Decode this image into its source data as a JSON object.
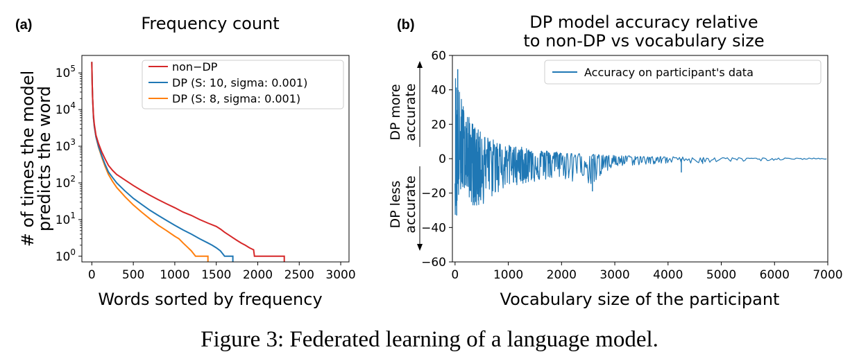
{
  "caption": "Figure 3: Federated learning of a language model.",
  "chart_data": [
    {
      "type": "line",
      "panel_label": "(a)",
      "title": "Frequency count",
      "xlabel": "Words sorted by frequency",
      "ylabel": "# of times the model\npredicts the word",
      "yscale": "log",
      "xlim": [
        -120,
        3100
      ],
      "ylim": [
        0.7,
        300000
      ],
      "xticks": [
        0,
        500,
        1000,
        1500,
        2000,
        2500,
        3000
      ],
      "xtick_labels": [
        "0",
        "500",
        "1000",
        "1500",
        "2000",
        "2500",
        "3000"
      ],
      "yticks": [
        1,
        10,
        100,
        1000,
        10000,
        100000
      ],
      "ytick_labels": [
        "10^0",
        "10^1",
        "10^2",
        "10^3",
        "10^4",
        "10^5"
      ],
      "legend_position": "top-right",
      "series": [
        {
          "name": "non−DP",
          "color": "#d62728",
          "x": [
            0,
            5,
            10,
            20,
            30,
            50,
            80,
            120,
            160,
            200,
            250,
            300,
            400,
            500,
            600,
            700,
            800,
            900,
            1000,
            1100,
            1200,
            1300,
            1400,
            1500,
            1550,
            1600,
            1650,
            1700,
            1750,
            1800,
            1850,
            1900,
            1950,
            1960,
            2320,
            2320
          ],
          "y": [
            200000,
            50000,
            20000,
            7000,
            4000,
            2000,
            1200,
            700,
            450,
            300,
            220,
            170,
            120,
            85,
            62,
            46,
            35,
            27,
            21,
            16,
            13,
            10,
            8,
            6.5,
            5.5,
            4.5,
            3.8,
            3.2,
            2.7,
            2.3,
            2,
            1.7,
            1.5,
            1,
            1,
            0.7
          ]
        },
        {
          "name": "DP (S: 10, sigma: 0.001)",
          "color": "#1f77b4",
          "x": [
            0,
            5,
            10,
            20,
            30,
            50,
            80,
            120,
            160,
            200,
            250,
            300,
            400,
            500,
            600,
            700,
            800,
            900,
            1000,
            1100,
            1200,
            1300,
            1400,
            1450,
            1500,
            1550,
            1600,
            1700,
            1700
          ],
          "y": [
            200000,
            50000,
            20000,
            6000,
            3500,
            1800,
            1000,
            550,
            320,
            200,
            140,
            100,
            60,
            38,
            26,
            18,
            13,
            9.5,
            7,
            5.2,
            4,
            3,
            2.3,
            2,
            1.7,
            1.4,
            1,
            1,
            0.7
          ]
        },
        {
          "name": "DP (S: 8, sigma: 0.001)",
          "color": "#ff7f0e",
          "x": [
            0,
            5,
            10,
            20,
            30,
            50,
            80,
            120,
            160,
            200,
            250,
            300,
            400,
            500,
            600,
            700,
            800,
            900,
            1000,
            1050,
            1100,
            1150,
            1200,
            1250,
            1400,
            1400
          ],
          "y": [
            200000,
            50000,
            20000,
            6000,
            3500,
            1800,
            950,
            500,
            280,
            170,
            110,
            75,
            42,
            25,
            16,
            10.5,
            7,
            5,
            3.5,
            3,
            2.3,
            1.8,
            1.4,
            1,
            1,
            0.7
          ]
        }
      ]
    },
    {
      "type": "line",
      "panel_label": "(b)",
      "title": "DP model accuracy relative\nto  non-DP vs vocabulary size",
      "xlabel": "Vocabulary size of the participant",
      "ylabel_upper": "DP more\naccurate",
      "ylabel_lower": "DP less\naccurate",
      "xlim": [
        -50,
        7000
      ],
      "ylim": [
        -60,
        60
      ],
      "xticks": [
        0,
        1000,
        2000,
        3000,
        4000,
        5000,
        6000,
        7000
      ],
      "xtick_labels": [
        "0",
        "1000",
        "2000",
        "3000",
        "4000",
        "5000",
        "6000",
        "7000"
      ],
      "yticks": [
        -60,
        -40,
        -20,
        0,
        20,
        40,
        60
      ],
      "ytick_labels": [
        "−60",
        "−40",
        "−20",
        "0",
        "20",
        "40",
        "60"
      ],
      "legend_position": "top-right",
      "series": [
        {
          "name": "Accuracy on participant's data",
          "color": "#1f77b4",
          "envelope_x": [
            0,
            50,
            100,
            150,
            200,
            300,
            400,
            500,
            600,
            800,
            1000,
            1200,
            1400,
            1600,
            1800,
            2000,
            2200,
            2400,
            2600,
            2800,
            3000,
            3300,
            3600,
            4000,
            4500,
            5000,
            5500,
            6000,
            6500,
            7000
          ],
          "envelope_upper": [
            52,
            45,
            38,
            32,
            28,
            22,
            18,
            15,
            13,
            10,
            8,
            7,
            6,
            5,
            4.5,
            4,
            3.5,
            3,
            2.6,
            2.2,
            2,
            1.7,
            1.4,
            1.2,
            0.9,
            0.7,
            0.5,
            0.4,
            0.4,
            0.4
          ],
          "envelope_lower": [
            -33,
            -25,
            -20,
            -18,
            -16,
            -26,
            -29,
            -27,
            -25,
            -20,
            -16,
            -15,
            -14,
            -13,
            -12,
            -11,
            -14,
            -10,
            -19,
            -9,
            -5,
            -4,
            -3.5,
            -3,
            -2.5,
            -2,
            -1.5,
            -1,
            -0.5,
            -0.3
          ],
          "spikes": [
            {
              "x": 1220,
              "y": 5
            },
            {
              "x": 2580,
              "y": -19
            },
            {
              "x": 4250,
              "y": -8
            },
            {
              "x": 4650,
              "y": -3
            },
            {
              "x": 30,
              "y": -33
            },
            {
              "x": 50,
              "y": 52
            }
          ]
        }
      ]
    }
  ]
}
